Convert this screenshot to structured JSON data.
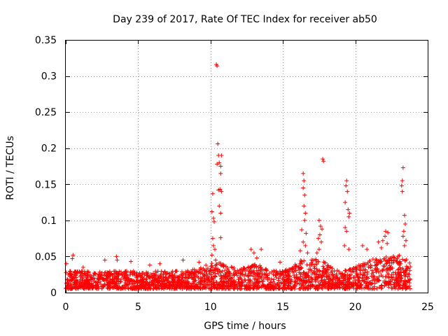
{
  "chart_data": {
    "type": "scatter",
    "title": "Day 239 of 2017, Rate Of TEC Index for receiver ab50",
    "xlabel": "GPS time / hours",
    "ylabel": "ROTI / TECUs",
    "xlim": [
      0,
      25
    ],
    "ylim": [
      0,
      0.35
    ],
    "xticks": [
      0,
      5,
      10,
      15,
      20,
      25
    ],
    "yticks": [
      0,
      0.05,
      0.1,
      0.15,
      0.2,
      0.25,
      0.3,
      0.35
    ],
    "xtick_labels": [
      "0",
      "5",
      "10",
      "15",
      "20",
      "25"
    ],
    "ytick_labels": [
      "0",
      "0.05",
      "0.1",
      "0.15",
      "0.2",
      "0.25",
      "0.3",
      "0.35"
    ],
    "grid": true,
    "marker": "+",
    "marker_color": "#ff0000",
    "x_extent_hours": [
      0,
      23.8
    ],
    "baseline_band": {
      "low": 0.005,
      "high": 0.03
    },
    "series": [
      {
        "name": "ROTI",
        "points": [
          [
            10.4,
            0.316
          ],
          [
            10.45,
            0.314
          ],
          [
            10.5,
            0.206
          ],
          [
            10.55,
            0.19
          ],
          [
            10.6,
            0.18
          ],
          [
            10.45,
            0.178
          ],
          [
            10.7,
            0.175
          ],
          [
            10.75,
            0.19
          ],
          [
            10.7,
            0.165
          ],
          [
            10.65,
            0.143
          ],
          [
            10.55,
            0.142
          ],
          [
            10.75,
            0.14
          ],
          [
            10.6,
            0.12
          ],
          [
            10.7,
            0.11
          ],
          [
            10.15,
            0.137
          ],
          [
            10.1,
            0.112
          ],
          [
            10.2,
            0.103
          ],
          [
            10.25,
            0.098
          ],
          [
            10.15,
            0.075
          ],
          [
            10.3,
            0.06
          ],
          [
            10.2,
            0.065
          ],
          [
            10.1,
            0.052
          ],
          [
            10.7,
            0.076
          ],
          [
            10.35,
            0.045
          ],
          [
            16.4,
            0.165
          ],
          [
            16.45,
            0.155
          ],
          [
            16.4,
            0.145
          ],
          [
            16.5,
            0.135
          ],
          [
            16.45,
            0.12
          ],
          [
            16.55,
            0.11
          ],
          [
            16.5,
            0.1
          ],
          [
            16.3,
            0.087
          ],
          [
            16.6,
            0.082
          ],
          [
            16.4,
            0.07
          ],
          [
            16.55,
            0.065
          ],
          [
            16.2,
            0.058
          ],
          [
            16.7,
            0.055
          ],
          [
            17.75,
            0.185
          ],
          [
            17.8,
            0.182
          ],
          [
            17.5,
            0.1
          ],
          [
            17.6,
            0.092
          ],
          [
            17.7,
            0.088
          ],
          [
            17.55,
            0.08
          ],
          [
            17.45,
            0.075
          ],
          [
            17.65,
            0.07
          ],
          [
            17.5,
            0.06
          ],
          [
            17.35,
            0.055
          ],
          [
            19.4,
            0.155
          ],
          [
            19.35,
            0.148
          ],
          [
            19.45,
            0.14
          ],
          [
            19.3,
            0.125
          ],
          [
            19.5,
            0.115
          ],
          [
            19.6,
            0.11
          ],
          [
            19.55,
            0.105
          ],
          [
            19.3,
            0.09
          ],
          [
            19.4,
            0.085
          ],
          [
            19.25,
            0.065
          ],
          [
            19.55,
            0.06
          ],
          [
            23.3,
            0.173
          ],
          [
            23.25,
            0.155
          ],
          [
            23.2,
            0.148
          ],
          [
            23.25,
            0.14
          ],
          [
            23.4,
            0.107
          ],
          [
            23.45,
            0.095
          ],
          [
            23.35,
            0.085
          ],
          [
            23.3,
            0.078
          ],
          [
            23.5,
            0.072
          ],
          [
            23.4,
            0.065
          ],
          [
            22.1,
            0.085
          ],
          [
            22.25,
            0.083
          ],
          [
            22.05,
            0.078
          ],
          [
            21.9,
            0.072
          ],
          [
            22.2,
            0.068
          ],
          [
            21.6,
            0.07
          ],
          [
            21.8,
            0.062
          ],
          [
            20.5,
            0.065
          ],
          [
            20.8,
            0.06
          ],
          [
            0.05,
            0.04
          ],
          [
            0.5,
            0.052
          ],
          [
            0.45,
            0.047
          ],
          [
            3.5,
            0.05
          ],
          [
            3.55,
            0.045
          ],
          [
            4.5,
            0.043
          ],
          [
            8.1,
            0.045
          ],
          [
            12.8,
            0.06
          ],
          [
            13.0,
            0.055
          ],
          [
            13.5,
            0.06
          ],
          [
            14.8,
            0.042
          ],
          [
            13.2,
            0.048
          ],
          [
            6.5,
            0.04
          ],
          [
            9.2,
            0.042
          ],
          [
            2.7,
            0.045
          ],
          [
            1.2,
            0.035
          ],
          [
            5.8,
            0.038
          ]
        ]
      }
    ]
  }
}
